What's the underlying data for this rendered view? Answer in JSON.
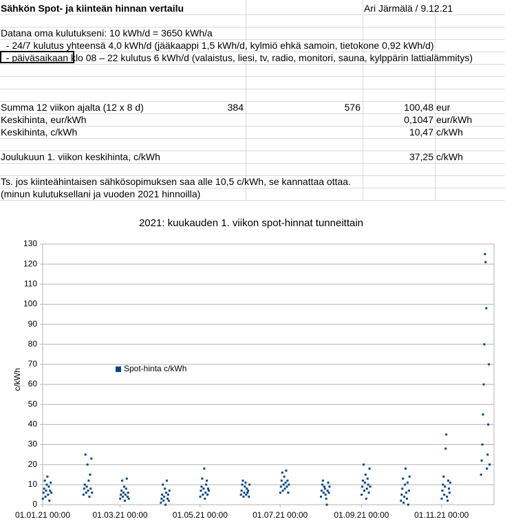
{
  "sheet": {
    "title": "Sähkön Spot- ja kiinteän hinnan vertailu",
    "author": "Ari Järmälä / 9.12.21",
    "notes": [
      "Datana oma kulutukseni: 10 kWh/d = 3650 kWh/a",
      "  - 24/7 kulutus yhteensä 4,0 kWh/d (jääkaappi 1,5 kWh/d, kylmiö ehkä samoin, tietokone 0,92 kWh/d)",
      "  - päiväsaikaan klo 08 – 22 kulutus 6 kWh/d (valaistus, liesi, tv, radio, monitori, sauna, kylppärin lattialämmitys)"
    ],
    "summary": [
      {
        "label": "Summa 12 viikon ajalta (12 x 8 d)",
        "a": "384",
        "b": "576",
        "value": "100,48",
        "unit": "eur"
      },
      {
        "label": "Keskihinta, eur/kWh",
        "value": "0,1047",
        "unit": "eur/kWh"
      },
      {
        "label": "Keskihinta, c/kWh",
        "value": "10,47",
        "unit": "c/kWh"
      },
      {
        "label": "Joulukuun 1. viikon keskihinta, c/kWh",
        "value": "37,25",
        "unit": "c/kWh"
      }
    ],
    "conclusion": [
      "Ts. jos kiinteähintaisen sähkösopimuksen saa alle 10,5 c/kWh, se kannattaa ottaa.",
      "(minun kulutuksellani ja vuoden 2021 hinnoilla)"
    ]
  },
  "chart_data": {
    "type": "scatter",
    "title": "2021: kuukauden 1. viikon spot-hinnat tunneittain",
    "y_label": "c/kWh",
    "xlim": [
      "01.01.21 00:00",
      "11.12.21 00:00"
    ],
    "xticks": [
      "01.01.21 00:00",
      "01.03.21 00:00",
      "01.05.21 00:00",
      "01.07.21 00:00",
      "01.09.21 00:00",
      "01.11.21 00:00"
    ],
    "ylim": [
      0,
      130
    ],
    "yticks": [
      0,
      10,
      20,
      30,
      40,
      50,
      60,
      70,
      80,
      90,
      100,
      110,
      120,
      130
    ],
    "grid": true,
    "legend": "left",
    "series": [
      {
        "name": "Spot-hinta c/kWh",
        "color": "#004586",
        "x": [
          "01.01.21 03:00",
          "01.01.21 15:00",
          "02.01.21 03:00",
          "02.01.21 15:00",
          "03.01.21 03:00",
          "03.01.21 15:00",
          "04.01.21 03:00",
          "04.01.21 15:00",
          "05.01.21 03:00",
          "05.01.21 15:00",
          "06.01.21 03:00",
          "06.01.21 15:00",
          "07.01.21 03:00",
          "07.01.21 15:00",
          "01.02.21 03:00",
          "01.02.21 15:00",
          "02.02.21 03:00",
          "02.02.21 15:00",
          "03.02.21 03:00",
          "03.02.21 15:00",
          "04.02.21 03:00",
          "04.02.21 15:00",
          "05.02.21 03:00",
          "05.02.21 15:00",
          "06.02.21 03:00",
          "06.02.21 15:00",
          "07.02.21 03:00",
          "07.02.21 15:00",
          "01.03.21 03:00",
          "01.03.21 15:00",
          "02.03.21 03:00",
          "02.03.21 15:00",
          "03.03.21 03:00",
          "03.03.21 15:00",
          "04.03.21 03:00",
          "04.03.21 15:00",
          "05.03.21 03:00",
          "05.03.21 15:00",
          "06.03.21 03:00",
          "06.03.21 15:00",
          "07.03.21 03:00",
          "07.03.21 15:00",
          "01.04.21 03:00",
          "01.04.21 15:00",
          "02.04.21 03:00",
          "02.04.21 15:00",
          "03.04.21 03:00",
          "03.04.21 15:00",
          "04.04.21 03:00",
          "04.04.21 15:00",
          "05.04.21 03:00",
          "05.04.21 15:00",
          "06.04.21 03:00",
          "06.04.21 15:00",
          "07.04.21 03:00",
          "07.04.21 15:00",
          "01.05.21 03:00",
          "01.05.21 15:00",
          "02.05.21 03:00",
          "02.05.21 15:00",
          "03.05.21 03:00",
          "03.05.21 15:00",
          "04.05.21 03:00",
          "04.05.21 15:00",
          "05.05.21 03:00",
          "05.05.21 15:00",
          "06.05.21 03:00",
          "06.05.21 15:00",
          "07.05.21 03:00",
          "07.05.21 15:00",
          "01.06.21 03:00",
          "01.06.21 15:00",
          "02.06.21 03:00",
          "02.06.21 15:00",
          "03.06.21 03:00",
          "03.06.21 15:00",
          "04.06.21 03:00",
          "04.06.21 15:00",
          "05.06.21 03:00",
          "05.06.21 15:00",
          "06.06.21 03:00",
          "06.06.21 15:00",
          "07.06.21 03:00",
          "07.06.21 15:00",
          "01.07.21 03:00",
          "01.07.21 15:00",
          "02.07.21 03:00",
          "02.07.21 15:00",
          "03.07.21 03:00",
          "03.07.21 15:00",
          "04.07.21 03:00",
          "04.07.21 15:00",
          "05.07.21 03:00",
          "05.07.21 15:00",
          "06.07.21 03:00",
          "06.07.21 15:00",
          "07.07.21 03:00",
          "07.07.21 15:00",
          "01.08.21 03:00",
          "01.08.21 15:00",
          "02.08.21 03:00",
          "02.08.21 15:00",
          "03.08.21 03:00",
          "03.08.21 15:00",
          "04.08.21 03:00",
          "04.08.21 15:00",
          "05.08.21 03:00",
          "05.08.21 15:00",
          "06.08.21 03:00",
          "06.08.21 15:00",
          "07.08.21 03:00",
          "07.08.21 15:00",
          "01.09.21 03:00",
          "01.09.21 15:00",
          "02.09.21 03:00",
          "02.09.21 15:00",
          "03.09.21 03:00",
          "03.09.21 15:00",
          "04.09.21 03:00",
          "04.09.21 15:00",
          "05.09.21 03:00",
          "05.09.21 15:00",
          "06.09.21 03:00",
          "06.09.21 15:00",
          "07.09.21 03:00",
          "07.09.21 15:00",
          "01.10.21 03:00",
          "01.10.21 15:00",
          "02.10.21 03:00",
          "02.10.21 15:00",
          "03.10.21 03:00",
          "03.10.21 15:00",
          "04.10.21 03:00",
          "04.10.21 15:00",
          "05.10.21 03:00",
          "05.10.21 15:00",
          "06.10.21 03:00",
          "06.10.21 15:00",
          "07.10.21 03:00",
          "07.10.21 15:00",
          "01.11.21 03:00",
          "01.11.21 15:00",
          "02.11.21 03:00",
          "02.11.21 15:00",
          "03.11.21 03:00",
          "03.11.21 15:00",
          "04.11.21 03:00",
          "04.11.21 15:00",
          "05.11.21 03:00",
          "05.11.21 15:00",
          "06.11.21 03:00",
          "06.11.21 15:00",
          "07.11.21 03:00",
          "07.11.21 15:00",
          "01.12.21 03:00",
          "01.12.21 15:00",
          "02.12.21 03:00",
          "02.12.21 15:00",
          "03.12.21 03:00",
          "03.12.21 15:00",
          "04.12.21 03:00",
          "04.12.21 15:00",
          "05.12.21 03:00",
          "05.12.21 15:00",
          "06.12.21 03:00",
          "06.12.21 15:00",
          "07.12.21 03:00",
          "07.12.21 15:00"
        ],
        "values": [
          3,
          6,
          8,
          12,
          4,
          7,
          10,
          14,
          5,
          9,
          2,
          7,
          11,
          6,
          5,
          8,
          10,
          25,
          6,
          9,
          20,
          7,
          12,
          4,
          15,
          8,
          23,
          6,
          3,
          5,
          7,
          12,
          4,
          6,
          9,
          2,
          5,
          8,
          13,
          4,
          6,
          3,
          1,
          3,
          5,
          10,
          2,
          4,
          8,
          0,
          6,
          12,
          3,
          5,
          2,
          7,
          4,
          7,
          9,
          13,
          5,
          8,
          18,
          3,
          6,
          10,
          12,
          5,
          8,
          7,
          5,
          7,
          10,
          12,
          4,
          6,
          9,
          11,
          5,
          8,
          6,
          7,
          4,
          10,
          6,
          9,
          12,
          16,
          7,
          10,
          14,
          8,
          11,
          17,
          9,
          12,
          6,
          10,
          4,
          7,
          10,
          12,
          6,
          9,
          8,
          5,
          3,
          0,
          7,
          11,
          6,
          9,
          5,
          9,
          12,
          20,
          7,
          11,
          15,
          3,
          8,
          13,
          10,
          6,
          18,
          9,
          2,
          5,
          8,
          13,
          1,
          4,
          10,
          18,
          6,
          3,
          11,
          0,
          7,
          14,
          3,
          7,
          10,
          14,
          5,
          9,
          28,
          35,
          4,
          2,
          12,
          8,
          6,
          11,
          15,
          22,
          30,
          45,
          60,
          80,
          125,
          121,
          98,
          18,
          25,
          40,
          70,
          20
        ]
      }
    ]
  }
}
